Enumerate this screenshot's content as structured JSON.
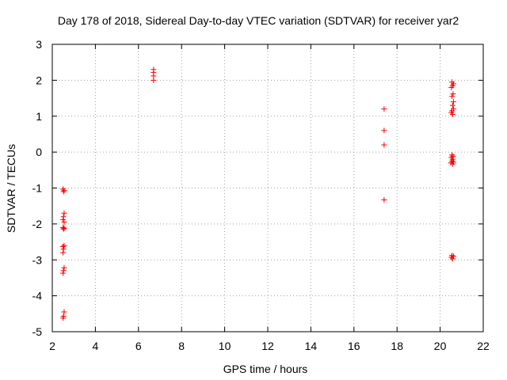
{
  "chart_data": {
    "type": "scatter",
    "title": "Day 178 of 2018, Sidereal Day-to-day VTEC variation (SDTVAR) for receiver yar2",
    "xlabel": "GPS time / hours",
    "ylabel": "SDTVAR / TECUs",
    "xlim": [
      2,
      22
    ],
    "ylim": [
      -5,
      3
    ],
    "grid": true,
    "legend": "none",
    "marker": "plus",
    "x_ticks": [
      2,
      4,
      6,
      8,
      10,
      12,
      14,
      16,
      18,
      20,
      22
    ],
    "x_tick_labels": [
      "2",
      "4",
      "6",
      "8",
      "10",
      "12",
      "14",
      "16",
      "18",
      "20",
      "22"
    ],
    "y_ticks": [
      3,
      2,
      1,
      0,
      -1,
      -2,
      -3,
      -4,
      -5
    ],
    "y_tick_labels": [
      "3",
      "2",
      "1",
      "0",
      "-1",
      "-2",
      "-3",
      "-4",
      "-5"
    ],
    "series": [
      {
        "name": "SDTVAR",
        "color": "#ff0000",
        "points": [
          [
            2.5,
            -1.03
          ],
          [
            2.55,
            -1.07
          ],
          [
            2.52,
            -1.1
          ],
          [
            2.55,
            -1.7
          ],
          [
            2.52,
            -1.8
          ],
          [
            2.5,
            -1.88
          ],
          [
            2.55,
            -1.95
          ],
          [
            2.5,
            -2.1
          ],
          [
            2.55,
            -2.12
          ],
          [
            2.52,
            -2.14
          ],
          [
            2.55,
            -2.6
          ],
          [
            2.5,
            -2.63
          ],
          [
            2.52,
            -2.7
          ],
          [
            2.5,
            -2.8
          ],
          [
            2.55,
            -3.22
          ],
          [
            2.52,
            -3.3
          ],
          [
            2.5,
            -3.37
          ],
          [
            2.55,
            -4.45
          ],
          [
            2.52,
            -4.57
          ],
          [
            2.5,
            -4.62
          ],
          [
            6.7,
            2.3
          ],
          [
            6.7,
            2.22
          ],
          [
            6.7,
            2.12
          ],
          [
            6.7,
            2.0
          ],
          [
            17.4,
            1.2
          ],
          [
            17.4,
            0.6
          ],
          [
            17.4,
            0.2
          ],
          [
            17.4,
            -1.33
          ],
          [
            20.55,
            1.95
          ],
          [
            20.62,
            1.9
          ],
          [
            20.58,
            1.85
          ],
          [
            20.52,
            1.8
          ],
          [
            20.6,
            1.62
          ],
          [
            20.55,
            1.55
          ],
          [
            20.62,
            1.4
          ],
          [
            20.58,
            1.3
          ],
          [
            20.62,
            1.2
          ],
          [
            20.55,
            1.15
          ],
          [
            20.52,
            1.1
          ],
          [
            20.58,
            1.05
          ],
          [
            20.55,
            -0.08
          ],
          [
            20.6,
            -0.12
          ],
          [
            20.52,
            -0.15
          ],
          [
            20.58,
            -0.2
          ],
          [
            20.55,
            -0.25
          ],
          [
            20.62,
            -0.28
          ],
          [
            20.5,
            -0.3
          ],
          [
            20.58,
            -0.33
          ],
          [
            20.55,
            -2.88
          ],
          [
            20.62,
            -2.9
          ],
          [
            20.52,
            -2.93
          ],
          [
            20.58,
            -2.97
          ]
        ]
      }
    ]
  }
}
